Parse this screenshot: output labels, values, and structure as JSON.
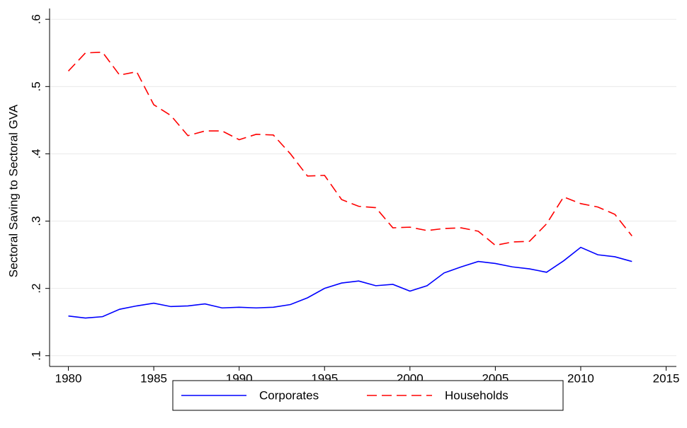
{
  "chart_data": {
    "type": "line",
    "ylabel": "Sectoral Saving to Sectoral GVA",
    "x": [
      1980,
      1981,
      1982,
      1983,
      1984,
      1985,
      1986,
      1987,
      1988,
      1989,
      1990,
      1991,
      1992,
      1993,
      1994,
      1995,
      1996,
      1997,
      1998,
      1999,
      2000,
      2001,
      2002,
      2003,
      2004,
      2005,
      2006,
      2007,
      2008,
      2009,
      2010,
      2011,
      2012,
      2013
    ],
    "series": [
      {
        "name": "Corporates",
        "color": "#0000ff",
        "style": "solid",
        "values": [
          0.159,
          0.156,
          0.158,
          0.169,
          0.174,
          0.178,
          0.173,
          0.174,
          0.177,
          0.171,
          0.172,
          0.171,
          0.172,
          0.176,
          0.186,
          0.2,
          0.208,
          0.211,
          0.204,
          0.206,
          0.196,
          0.204,
          0.223,
          0.232,
          0.24,
          0.237,
          0.232,
          0.229,
          0.224,
          0.241,
          0.261,
          0.25,
          0.247,
          0.24
        ]
      },
      {
        "name": "Households",
        "color": "#ff0000",
        "style": "dashed",
        "values": [
          0.523,
          0.55,
          0.551,
          0.517,
          0.522,
          0.473,
          0.457,
          0.427,
          0.434,
          0.434,
          0.421,
          0.429,
          0.428,
          0.4,
          0.367,
          0.368,
          0.332,
          0.322,
          0.32,
          0.29,
          0.291,
          0.286,
          0.289,
          0.29,
          0.285,
          0.264,
          0.269,
          0.27,
          0.296,
          0.336,
          0.326,
          0.321,
          0.31,
          0.278
        ]
      }
    ],
    "xlim": [
      1978.9,
      2015.6
    ],
    "xticks": [
      1980,
      1985,
      1990,
      1995,
      2000,
      2005,
      2010,
      2015
    ],
    "ylim": [
      0.084,
      0.616
    ],
    "yticks": [
      {
        "value": 0.1,
        "label": ".1"
      },
      {
        "value": 0.2,
        "label": ".2"
      },
      {
        "value": 0.3,
        "label": ".3"
      },
      {
        "value": 0.4,
        "label": ".4"
      },
      {
        "value": 0.5,
        "label": ".5"
      },
      {
        "value": 0.6,
        "label": ".6"
      }
    ],
    "grid": true,
    "legend": "bottom"
  }
}
